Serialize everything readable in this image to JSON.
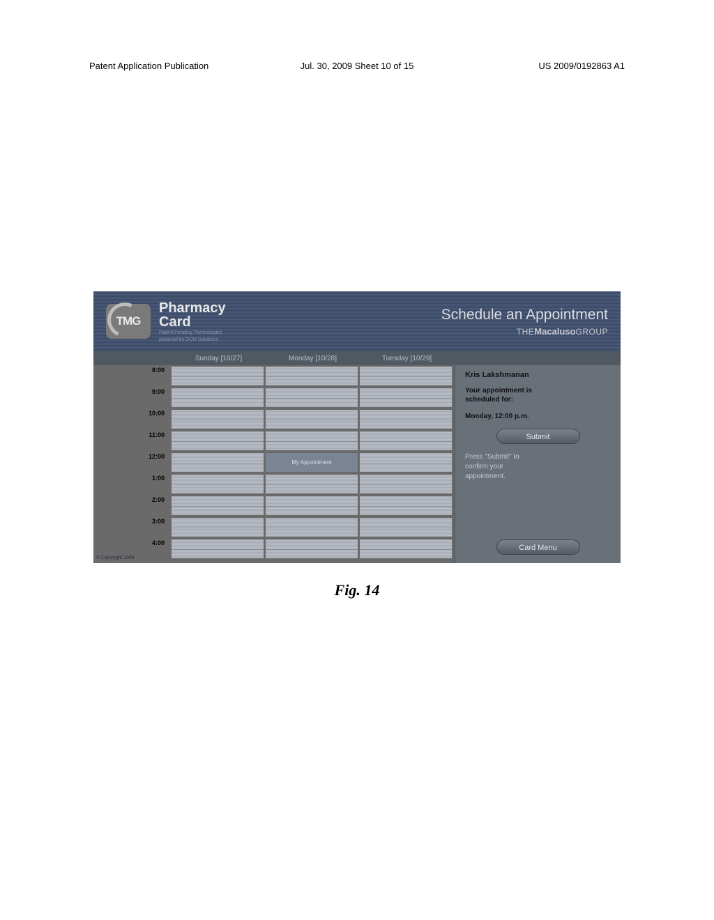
{
  "header": {
    "left": "Patent Application Publication",
    "center": "Jul. 30, 2009  Sheet 10 of 15",
    "right": "US 2009/0192863 A1"
  },
  "kiosk": {
    "logo_text": "TMG",
    "brand_line1": "Pharmacy",
    "brand_line2": "Card",
    "brand_tag1": "Patent Pending Technologies",
    "brand_tag2": "powered by DCM Solutions",
    "page_title": "Schedule an Appointment",
    "page_sub_pre": "THE",
    "page_sub_bold": "Macaluso",
    "page_sub_post": "GROUP",
    "copyright": "© Copyright 2008"
  },
  "schedule": {
    "days": [
      {
        "label": "Sunday [10/27]"
      },
      {
        "label": "Monday [10/28]"
      },
      {
        "label": "Tuesday [10/29]"
      }
    ],
    "times": [
      "8:00",
      "9:00",
      "10:00",
      "11:00",
      "12:00",
      "1:00",
      "2:00",
      "3:00",
      "4:00"
    ],
    "selected": {
      "day_index": 1,
      "time_index": 4,
      "label": "My Appointment"
    }
  },
  "side": {
    "name": "Kris Lakshmanan",
    "line1": "Your appointment is",
    "line2": "scheduled for:",
    "when": "Monday, 12:00 p.m.",
    "submit": "Submit",
    "hint1": "Press \"Submit\" to",
    "hint2": "confirm your",
    "hint3": "appointment.",
    "menu": "Card Menu"
  },
  "caption": "Fig. 14"
}
